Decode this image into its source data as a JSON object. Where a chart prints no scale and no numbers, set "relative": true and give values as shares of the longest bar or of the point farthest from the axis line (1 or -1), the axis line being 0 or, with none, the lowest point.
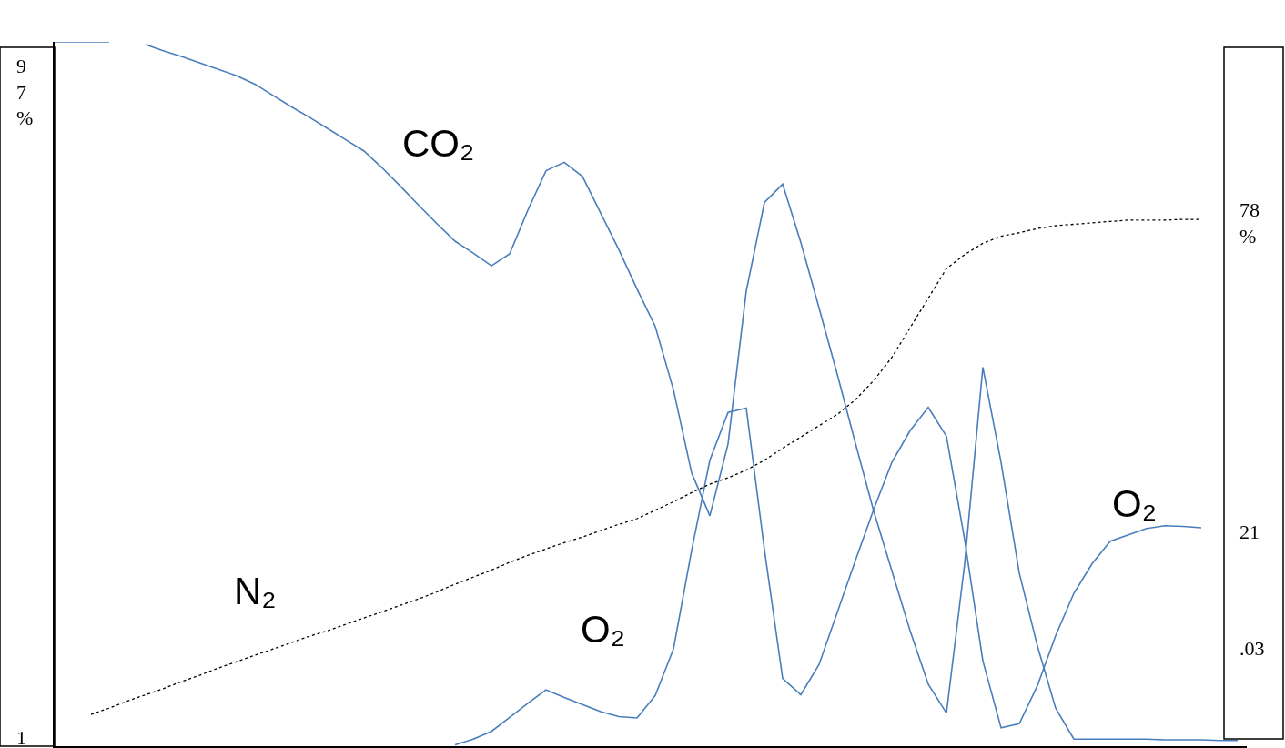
{
  "chart_data": {
    "type": "line",
    "relative": true,
    "legend": false,
    "categories": [
      null,
      null,
      null,
      null,
      null,
      null,
      null,
      null,
      null,
      null,
      null,
      null,
      null,
      null,
      null,
      null,
      null,
      null,
      null,
      null,
      null,
      null,
      null,
      null,
      null,
      null,
      null,
      null,
      null,
      null,
      null,
      null,
      null,
      null,
      null,
      null,
      null,
      null,
      null,
      null,
      null,
      null,
      null,
      null,
      null,
      null,
      null,
      null,
      null,
      null,
      null,
      null,
      null,
      null,
      null,
      null,
      null,
      null,
      null,
      null,
      null,
      null,
      null,
      null,
      null,
      null
    ],
    "series": [
      {
        "name": "CO₂",
        "color": "#4a7ebb",
        "line_style": "solid",
        "values": [
          1,
          1,
          1,
          1,
          null,
          0.996,
          0.987,
          0.979,
          0.97,
          0.961,
          0.952,
          0.94,
          0.924,
          0.908,
          0.893,
          0.877,
          0.861,
          0.845,
          0.821,
          0.795,
          0.768,
          0.742,
          0.717,
          0.7,
          0.682,
          0.699,
          0.761,
          0.817,
          0.829,
          0.809,
          0.757,
          0.705,
          0.649,
          0.596,
          0.506,
          0.388,
          0.327,
          0.429,
          0.646,
          0.772,
          0.798,
          0.715,
          0.622,
          0.528,
          0.43,
          0.334,
          0.249,
          0.164,
          0.088,
          0.047,
          0.259,
          0.538,
          0.403,
          0.246,
          0.142,
          0.054,
          0.01,
          0.01,
          0.01,
          0.01,
          0.01,
          0.009,
          0.009,
          0.009,
          0.008,
          0.008
        ]
      },
      {
        "name": "O₂",
        "color": "#4a7ebb",
        "line_style": "solid",
        "values": [
          null,
          null,
          null,
          null,
          null,
          null,
          null,
          null,
          null,
          null,
          null,
          null,
          null,
          null,
          null,
          null,
          null,
          null,
          null,
          null,
          null,
          null,
          0.002,
          0.01,
          0.021,
          0.041,
          0.061,
          0.08,
          0.069,
          0.059,
          0.049,
          0.042,
          0.04,
          0.072,
          0.138,
          0.278,
          0.406,
          0.474,
          0.48,
          0.279,
          0.096,
          0.073,
          0.116,
          0.19,
          0.264,
          0.336,
          0.403,
          0.448,
          0.481,
          0.44,
          0.293,
          0.121,
          0.026,
          0.032,
          0.086,
          0.157,
          0.217,
          0.259,
          0.291,
          0.3,
          0.309,
          0.313,
          0.312,
          0.31,
          null,
          null
        ]
      },
      {
        "name": "N₂",
        "color": "#000000",
        "line_style": "dotted",
        "values": [
          null,
          null,
          0.045,
          0.054,
          0.064,
          0.073,
          0.082,
          0.092,
          0.101,
          0.111,
          0.12,
          0.129,
          0.138,
          0.147,
          0.156,
          0.164,
          0.173,
          0.182,
          0.191,
          0.2,
          0.209,
          0.219,
          0.23,
          0.24,
          0.25,
          0.261,
          0.271,
          0.28,
          0.289,
          0.297,
          0.306,
          0.315,
          0.323,
          0.335,
          0.347,
          0.36,
          0.372,
          0.381,
          0.392,
          0.406,
          0.423,
          0.439,
          0.455,
          0.471,
          0.492,
          0.519,
          0.552,
          0.594,
          0.636,
          0.678,
          0.698,
          0.714,
          0.724,
          0.729,
          0.735,
          0.739,
          0.741,
          0.743,
          0.745,
          0.747,
          0.747,
          0.747,
          0.748,
          0.748,
          null,
          null
        ]
      }
    ],
    "annotations": [
      "O₂",
      "97%",
      "1",
      "78%",
      "21",
      ".03"
    ]
  }
}
